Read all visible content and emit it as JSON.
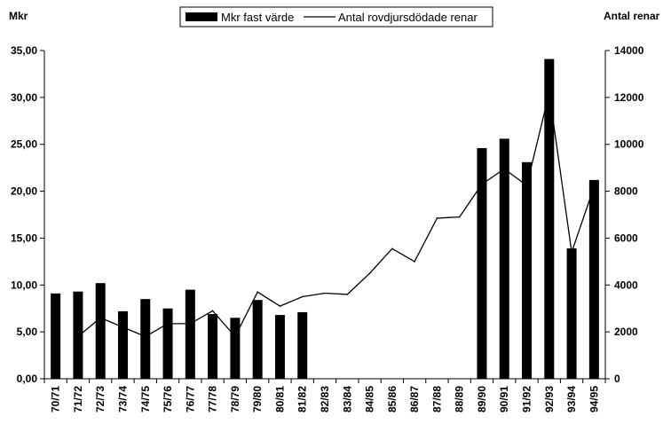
{
  "chart_data": {
    "type": "bar",
    "title": "",
    "ylabel_left": "Mkr",
    "ylabel_right": "Antal renar",
    "categories": [
      "70/71",
      "71/72",
      "72/73",
      "73/74",
      "74/75",
      "75/76",
      "76/77",
      "77/78",
      "78/79",
      "79/80",
      "80/81",
      "81/82",
      "82/83",
      "83/84",
      "84/85",
      "85/86",
      "86/87",
      "87/88",
      "88/89",
      "89/90",
      "90/91",
      "91/92",
      "92/93",
      "93/94",
      "94/95"
    ],
    "series": [
      {
        "name": "Mkr fast värde",
        "type": "bar",
        "axis": "left",
        "color": "#000000",
        "values": [
          9.1,
          9.3,
          10.2,
          7.2,
          8.5,
          7.5,
          9.5,
          6.9,
          6.5,
          8.4,
          6.8,
          7.1,
          null,
          null,
          null,
          null,
          null,
          null,
          null,
          24.6,
          25.6,
          23.1,
          34.1,
          13.9,
          21.2
        ]
      },
      {
        "name": "Antal rovdjursdödade renar",
        "type": "line",
        "axis": "right",
        "color": "#000000",
        "values": [
          null,
          1800,
          2600,
          2200,
          1800,
          2350,
          2350,
          2900,
          1800,
          3700,
          3100,
          3500,
          3650,
          3600,
          4500,
          5550,
          5000,
          6850,
          6900,
          8300,
          8950,
          8250,
          12200,
          5400,
          8200
        ]
      }
    ],
    "ylim_left": [
      0,
      35
    ],
    "ylim_right": [
      0,
      14000
    ],
    "yticks_left": [
      "0,00",
      "5,00",
      "10,00",
      "15,00",
      "20,00",
      "25,00",
      "30,00",
      "35,00"
    ],
    "yticks_right": [
      "0",
      "2000",
      "4000",
      "6000",
      "8000",
      "10000",
      "12000",
      "14000"
    ],
    "grid": false,
    "legend_position": "top"
  }
}
